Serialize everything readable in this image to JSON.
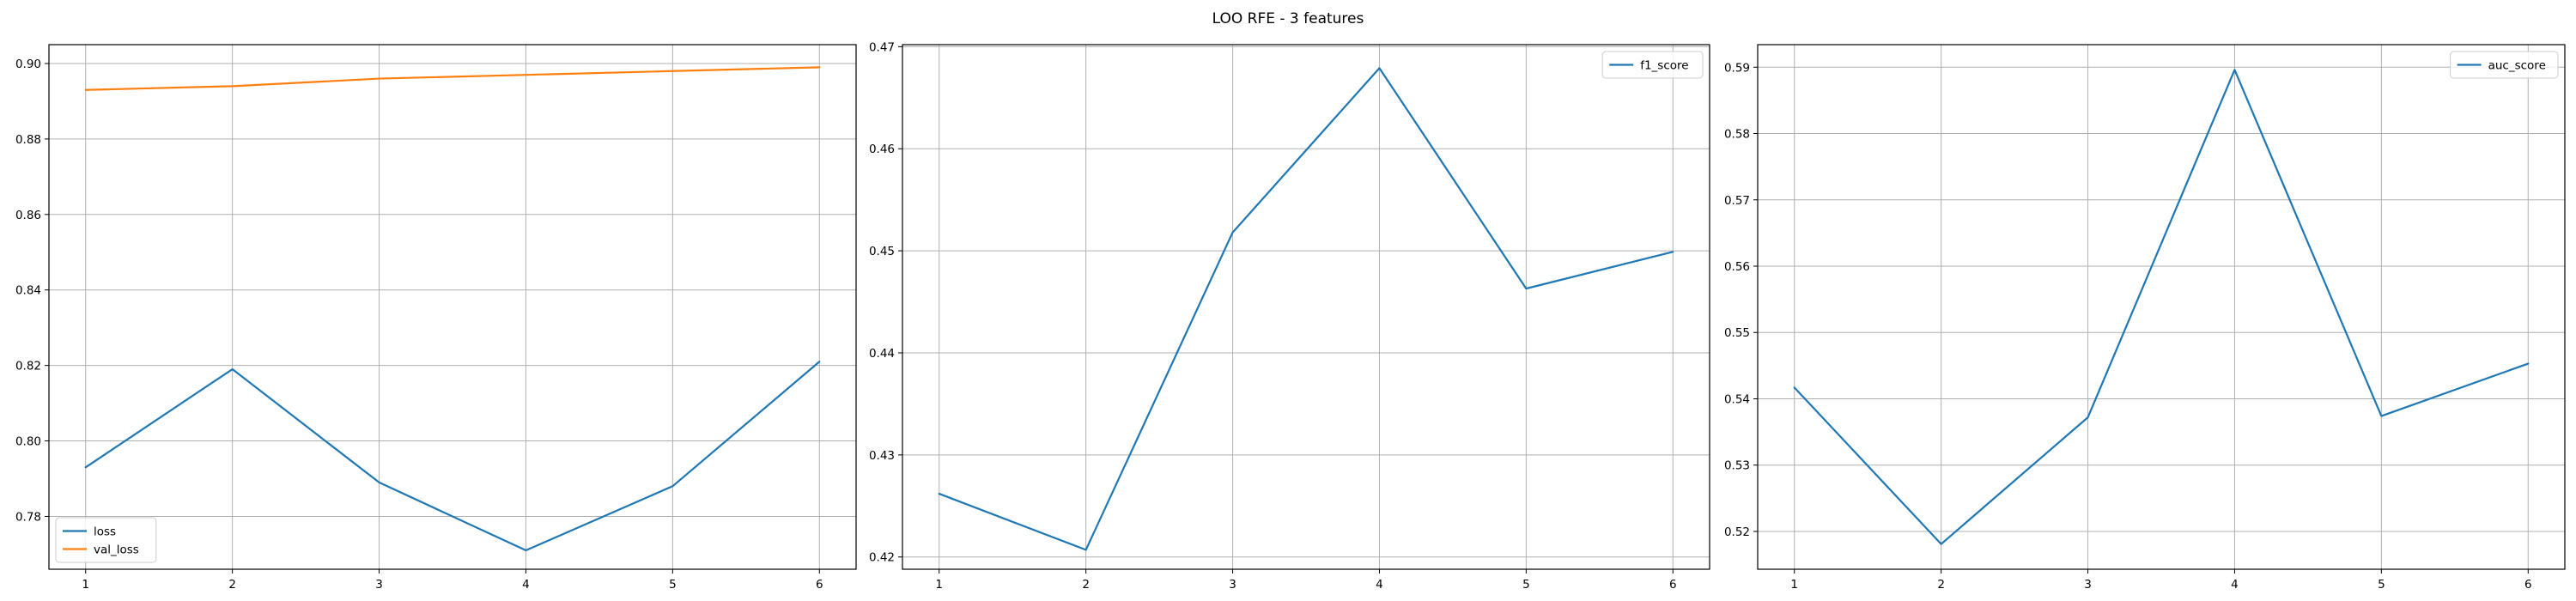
{
  "suptitle": "LOO RFE - 3 features",
  "colors": {
    "blue": "#1f77b4",
    "orange": "#ff7f0e"
  },
  "chart_data": [
    {
      "type": "line",
      "title": "",
      "xlabel": "",
      "ylabel": "",
      "x": [
        1,
        2,
        3,
        4,
        5,
        6
      ],
      "xticks": [
        1,
        2,
        3,
        4,
        5,
        6
      ],
      "xticklabels": [
        "1",
        "2",
        "3",
        "4",
        "5",
        "6"
      ],
      "ylim": [
        0.766,
        0.905
      ],
      "yticks": [
        0.78,
        0.8,
        0.82,
        0.84,
        0.86,
        0.88,
        0.9
      ],
      "yticklabels": [
        "0.78",
        "0.80",
        "0.82",
        "0.84",
        "0.86",
        "0.88",
        "0.90"
      ],
      "grid": true,
      "legend_position": "lower-left",
      "series": [
        {
          "name": "loss",
          "color": "#1f77b4",
          "values": [
            0.793,
            0.819,
            0.789,
            0.771,
            0.788,
            0.821
          ]
        },
        {
          "name": "val_loss",
          "color": "#ff7f0e",
          "values": [
            0.893,
            0.894,
            0.896,
            0.897,
            0.898,
            0.899
          ]
        }
      ]
    },
    {
      "type": "line",
      "title": "",
      "xlabel": "",
      "ylabel": "",
      "x": [
        1,
        2,
        3,
        4,
        5,
        6
      ],
      "xticks": [
        1,
        2,
        3,
        4,
        5,
        6
      ],
      "xticklabels": [
        "1",
        "2",
        "3",
        "4",
        "5",
        "6"
      ],
      "ylim": [
        0.4188,
        0.4702
      ],
      "yticks": [
        0.42,
        0.43,
        0.44,
        0.45,
        0.46,
        0.47
      ],
      "yticklabels": [
        "0.42",
        "0.43",
        "0.44",
        "0.45",
        "0.46",
        "0.47"
      ],
      "grid": true,
      "legend_position": "upper-right",
      "series": [
        {
          "name": "f1_score",
          "color": "#1f77b4",
          "values": [
            0.4262,
            0.4207,
            0.4518,
            0.4679,
            0.4463,
            0.4499
          ]
        }
      ]
    },
    {
      "type": "line",
      "title": "",
      "xlabel": "",
      "ylabel": "",
      "x": [
        1,
        2,
        3,
        4,
        5,
        6
      ],
      "xticks": [
        1,
        2,
        3,
        4,
        5,
        6
      ],
      "xticklabels": [
        "1",
        "2",
        "3",
        "4",
        "5",
        "6"
      ],
      "ylim": [
        0.5143,
        0.5934
      ],
      "yticks": [
        0.52,
        0.53,
        0.54,
        0.55,
        0.56,
        0.57,
        0.58,
        0.59
      ],
      "yticklabels": [
        "0.52",
        "0.53",
        "0.54",
        "0.55",
        "0.56",
        "0.57",
        "0.58",
        "0.59"
      ],
      "grid": true,
      "legend_position": "upper-right",
      "series": [
        {
          "name": "auc_score",
          "color": "#1f77b4",
          "values": [
            0.5417,
            0.5181,
            0.5372,
            0.5896,
            0.5374,
            0.5453
          ]
        }
      ]
    }
  ]
}
